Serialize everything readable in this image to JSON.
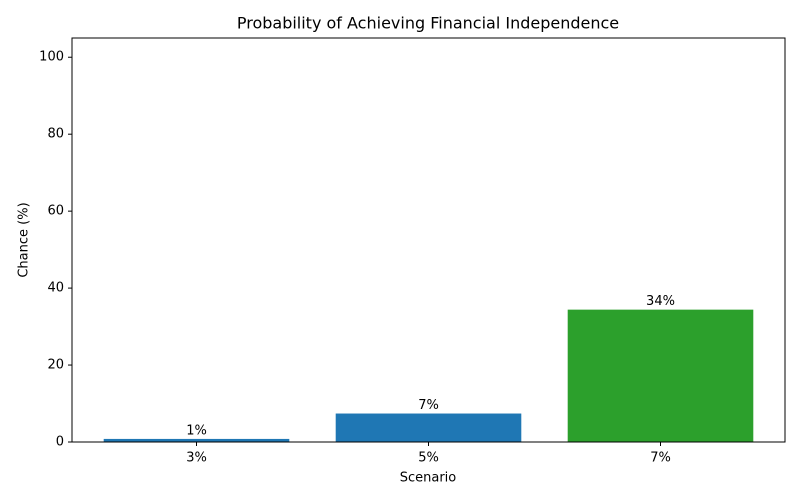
{
  "chart_data": {
    "type": "bar",
    "title": "Probability of Achieving Financial Independence",
    "x_label": "Scenario",
    "y_label": "Chance (%)",
    "categories": [
      "3%",
      "5%",
      "7%"
    ],
    "values": [
      0.8,
      7.4,
      34.4
    ],
    "value_labels": [
      "1%",
      "7%",
      "34%"
    ],
    "colors": [
      "#1f77b4",
      "#1f77b4",
      "#2ca02c"
    ],
    "ylim": [
      0,
      105
    ],
    "yticks": [
      0,
      20,
      40,
      60,
      80,
      100
    ],
    "grid": false
  }
}
